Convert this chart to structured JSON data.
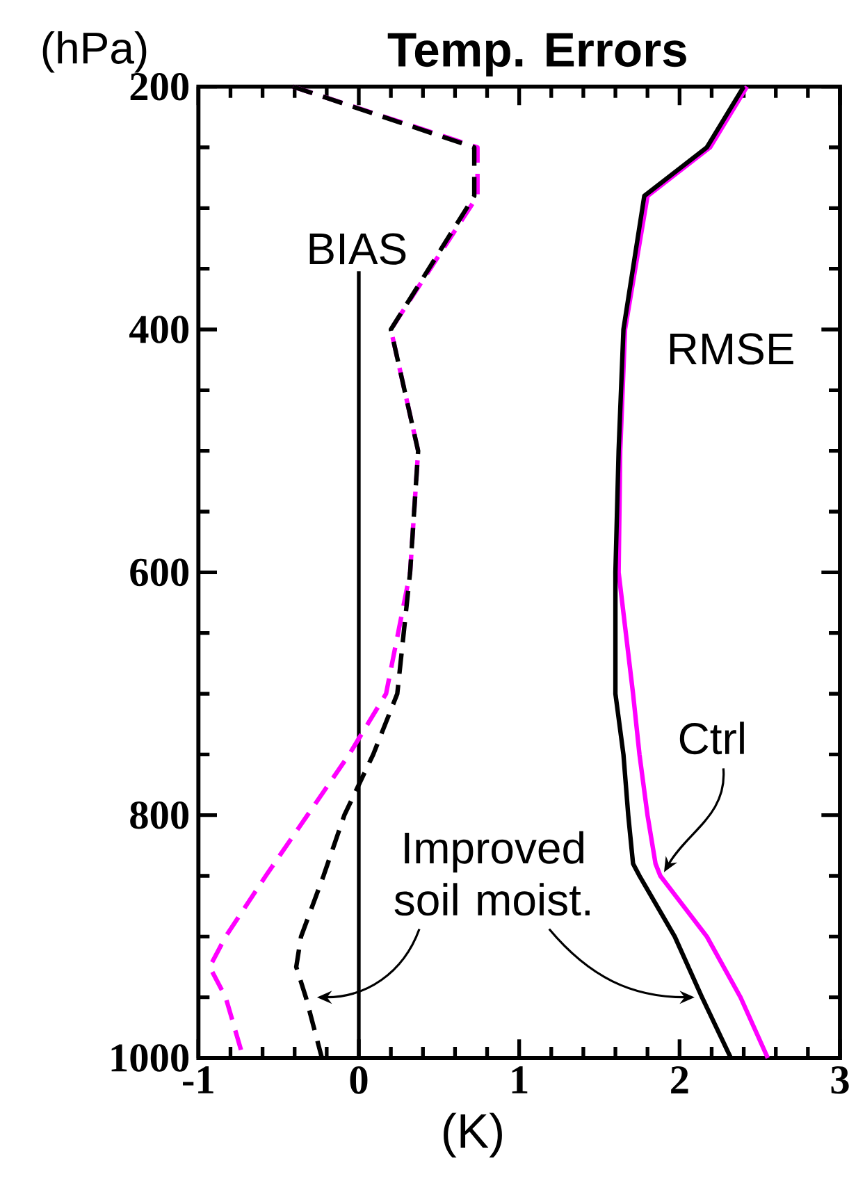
{
  "chart_data": {
    "type": "line",
    "title": "Temp. Errors",
    "xlabel": "(K)",
    "ylabel": "(hPa)",
    "xlim": [
      -1,
      3
    ],
    "ylim": [
      1000,
      200
    ],
    "xticks": [
      -1,
      0,
      1,
      2,
      3
    ],
    "yticks": [
      200,
      400,
      600,
      800,
      1000
    ],
    "grid": false,
    "marker": "none",
    "series": [
      {
        "color": "#ff00ff",
        "line_style": "dashed",
        "x": [
          -0.41,
          0.74,
          0.74,
          0.2,
          0.37,
          0.32,
          0.17,
          -0.06,
          -0.32,
          -0.58,
          -0.83,
          -0.93,
          -0.83,
          -0.72
        ],
        "values": [
          200,
          250,
          290,
          400,
          500,
          600,
          700,
          750,
          800,
          850,
          900,
          925,
          950,
          1000
        ]
      },
      {
        "color": "#000000",
        "line_style": "dashed",
        "x": [
          -0.41,
          0.72,
          0.72,
          0.2,
          0.37,
          0.32,
          0.24,
          0.09,
          -0.09,
          -0.22,
          -0.36,
          -0.39,
          -0.33,
          -0.23
        ],
        "values": [
          200,
          250,
          290,
          400,
          500,
          600,
          700,
          750,
          800,
          850,
          900,
          925,
          950,
          1000
        ]
      },
      {
        "color": "#ff00ff",
        "line_style": "solid",
        "x": [
          2.42,
          2.19,
          1.8,
          1.66,
          1.63,
          1.62,
          1.71,
          1.75,
          1.8,
          1.85,
          1.88,
          2.17,
          2.38,
          2.55
        ],
        "values": [
          200,
          250,
          290,
          400,
          500,
          600,
          700,
          750,
          800,
          840,
          850,
          900,
          950,
          1000
        ]
      },
      {
        "color": "#000000",
        "line_style": "solid",
        "x": [
          2.4,
          2.17,
          1.78,
          1.65,
          1.62,
          1.6,
          1.6,
          1.65,
          1.68,
          1.71,
          1.75,
          1.97,
          2.14,
          2.32
        ],
        "values": [
          200,
          250,
          290,
          400,
          500,
          600,
          700,
          750,
          800,
          840,
          850,
          900,
          950,
          1000
        ]
      }
    ],
    "ref_lines": [
      {
        "axis": "x",
        "value": 0,
        "label": "BIAS"
      }
    ],
    "annotations": [
      "RMSE",
      {
        "text": "Ctrl",
        "x": 1.88,
        "y": 850
      },
      "Improved soil moist."
    ]
  }
}
